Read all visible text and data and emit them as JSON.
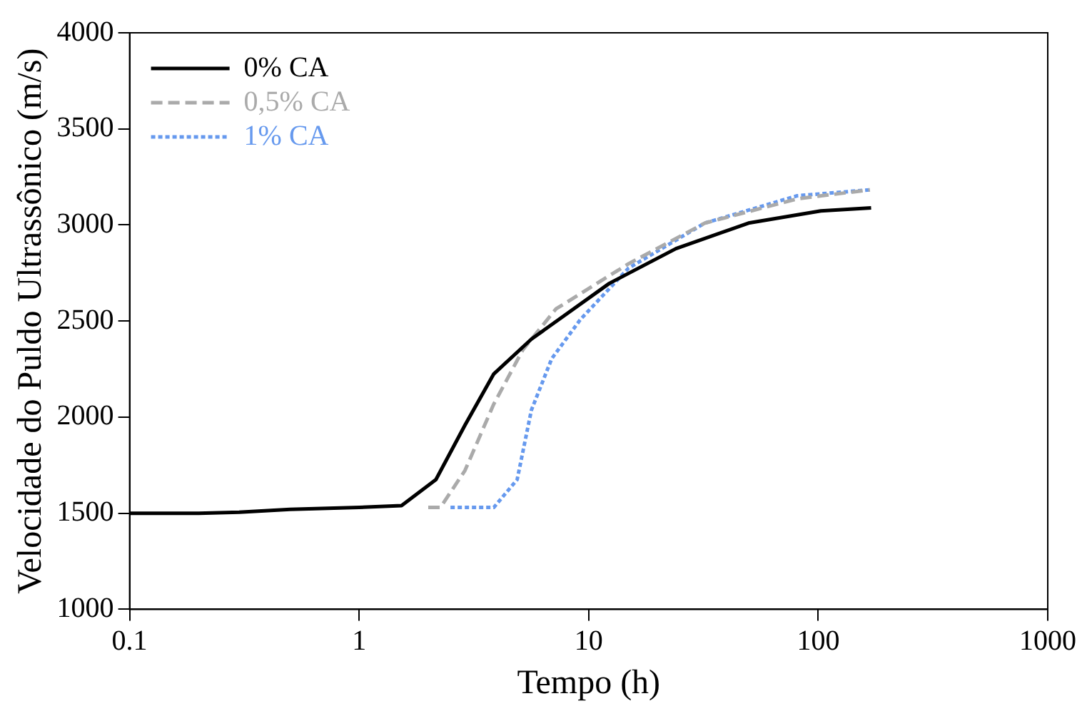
{
  "chart_data": {
    "type": "line",
    "xlabel": "Tempo (h)",
    "ylabel": "Velocidade do Puldo Ultrassônico (m/s)",
    "log": "x",
    "xlim": [
      0.1,
      1000
    ],
    "xticks": [
      0.1,
      1,
      10,
      100,
      1000
    ],
    "ylim": [
      1000,
      4000
    ],
    "yticks": [
      1000,
      1500,
      2000,
      2500,
      3000,
      3500,
      4000
    ],
    "grid": false,
    "legend": "top left",
    "series": [
      {
        "name": "0% CA",
        "color": "#000000",
        "line_style": "solid",
        "x": [
          0.1,
          0.2,
          0.3,
          0.5,
          1,
          1.53,
          2.16,
          2.89,
          3.86,
          5.63,
          12.3,
          24,
          49.7,
          102.6,
          170
        ],
        "values": [
          1500,
          1500,
          1505,
          1520,
          1530,
          1540,
          1675,
          1958,
          2225,
          2406,
          2696,
          2877,
          3010,
          3073,
          3089
        ]
      },
      {
        "name": "0,5% CA",
        "color": "#aaaaaa",
        "line_style": "dashed",
        "x": [
          2,
          2.26,
          2.89,
          3.86,
          5.17,
          7.2,
          14.9,
          32.1,
          81,
          168
        ],
        "values": [
          1530,
          1530,
          1722,
          2068,
          2351,
          2563,
          2798,
          3010,
          3136,
          3183
        ]
      },
      {
        "name": "1% CA",
        "color": "#6699ee",
        "line_style": "dotted",
        "x": [
          2.5,
          3.86,
          4.88,
          5.63,
          6.9,
          9.2,
          14.9,
          32.1,
          81,
          168
        ],
        "values": [
          1530,
          1530,
          1675,
          2037,
          2304,
          2508,
          2775,
          3010,
          3152,
          3183
        ]
      }
    ]
  }
}
